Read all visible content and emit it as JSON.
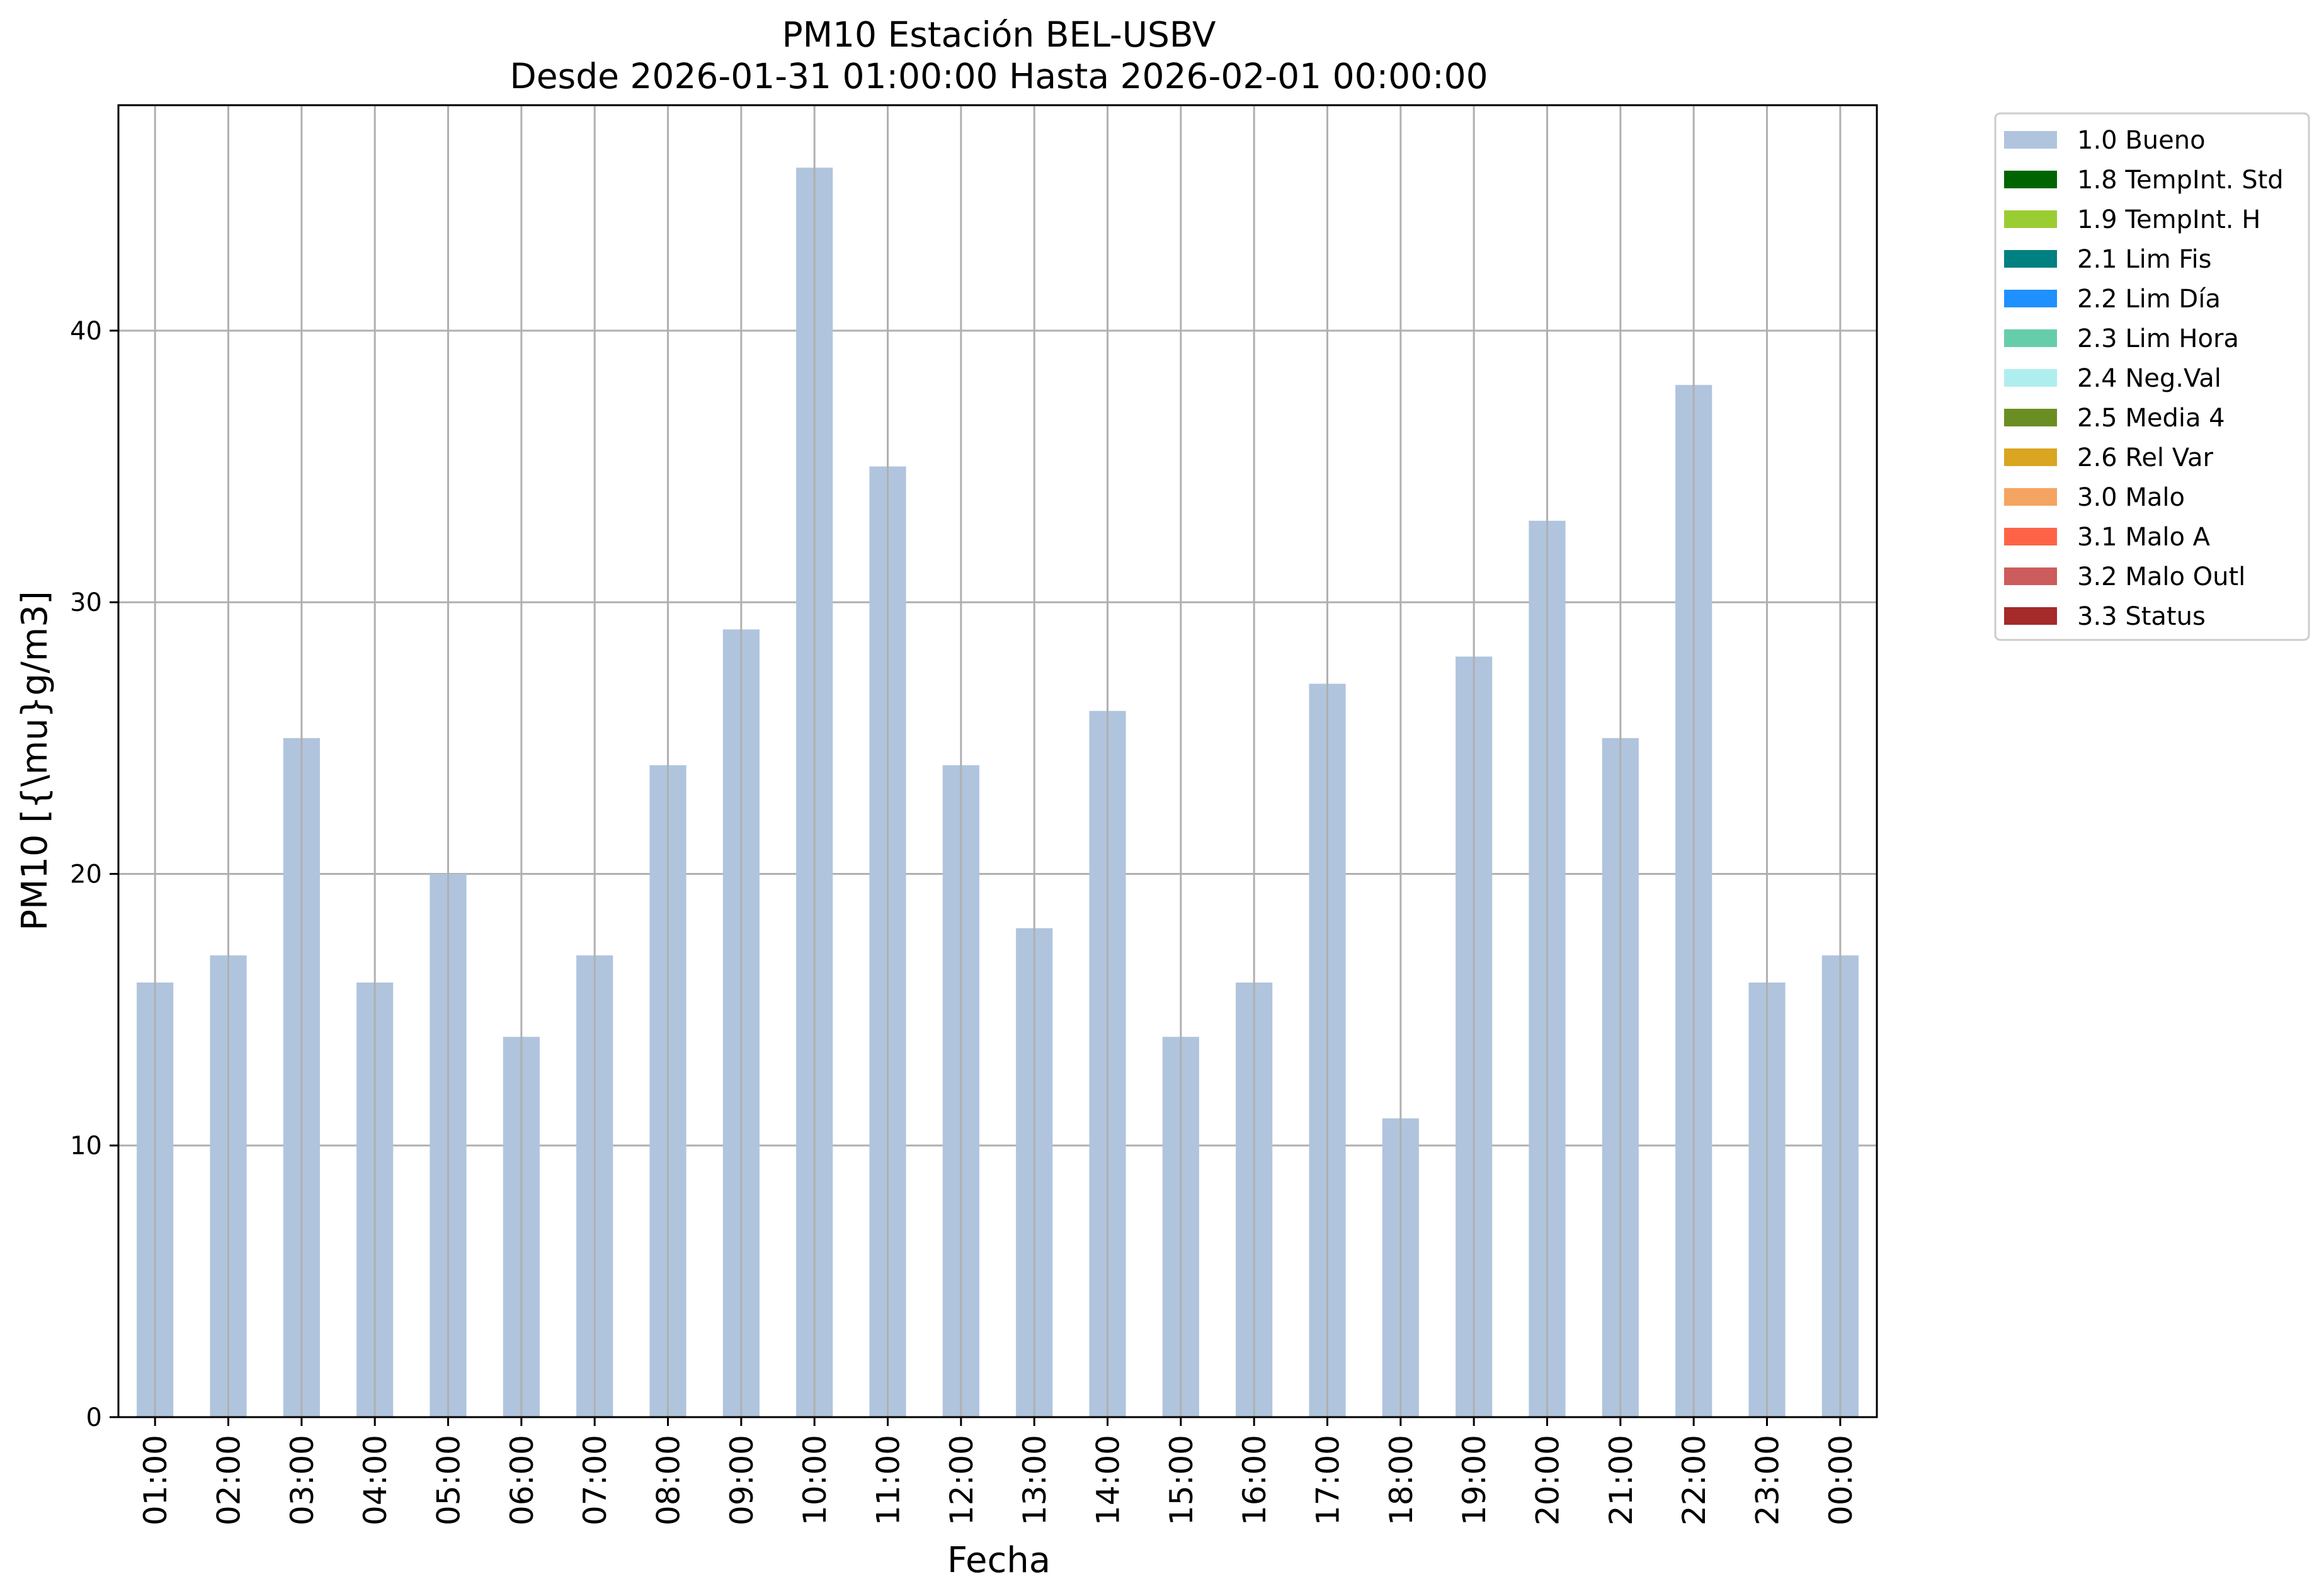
{
  "chart_data": {
    "type": "bar",
    "title": "PM10 Estación BEL-USBV",
    "subtitle": "Desde 2026-01-31 01:00:00 Hasta 2026-02-01 00:00:00",
    "xlabel": "Fecha",
    "ylabel": "PM10 [{\\mu}g/m3]",
    "categories": [
      "01:00",
      "02:00",
      "03:00",
      "04:00",
      "05:00",
      "06:00",
      "07:00",
      "08:00",
      "09:00",
      "10:00",
      "11:00",
      "12:00",
      "13:00",
      "14:00",
      "15:00",
      "16:00",
      "17:00",
      "18:00",
      "19:00",
      "20:00",
      "21:00",
      "22:00",
      "23:00",
      "00:00"
    ],
    "series": [
      {
        "name": "1.0 Bueno",
        "color": "#b0c4de",
        "values": [
          16,
          17,
          25,
          16,
          20,
          14,
          17,
          24,
          29,
          46,
          35,
          24,
          18,
          26,
          14,
          16,
          27,
          11,
          28,
          33,
          25,
          38,
          16,
          17
        ]
      }
    ],
    "ylim": [
      0,
      48.3
    ],
    "yticks": [
      0,
      10,
      20,
      30,
      40
    ],
    "grid": true,
    "legend_position": "outside-right-top",
    "legend": [
      {
        "label": "1.0 Bueno",
        "color": "#b0c4de"
      },
      {
        "label": "1.8 TempInt. Std",
        "color": "#006400"
      },
      {
        "label": "1.9 TempInt. H",
        "color": "#9acd32"
      },
      {
        "label": "2.1 Lim Fis",
        "color": "#008080"
      },
      {
        "label": "2.2 Lim Día",
        "color": "#1e90ff"
      },
      {
        "label": "2.3 Lim Hora",
        "color": "#66cdaa"
      },
      {
        "label": "2.4 Neg.Val",
        "color": "#afeeee"
      },
      {
        "label": "2.5 Media 4",
        "color": "#6b8e23"
      },
      {
        "label": "2.6 Rel Var",
        "color": "#daa520"
      },
      {
        "label": "3.0 Malo",
        "color": "#f4a460"
      },
      {
        "label": "3.1 Malo A",
        "color": "#ff6347"
      },
      {
        "label": "3.2 Malo Outl",
        "color": "#cd5c5c"
      },
      {
        "label": "3.3 Status",
        "color": "#a52a2a"
      }
    ]
  }
}
